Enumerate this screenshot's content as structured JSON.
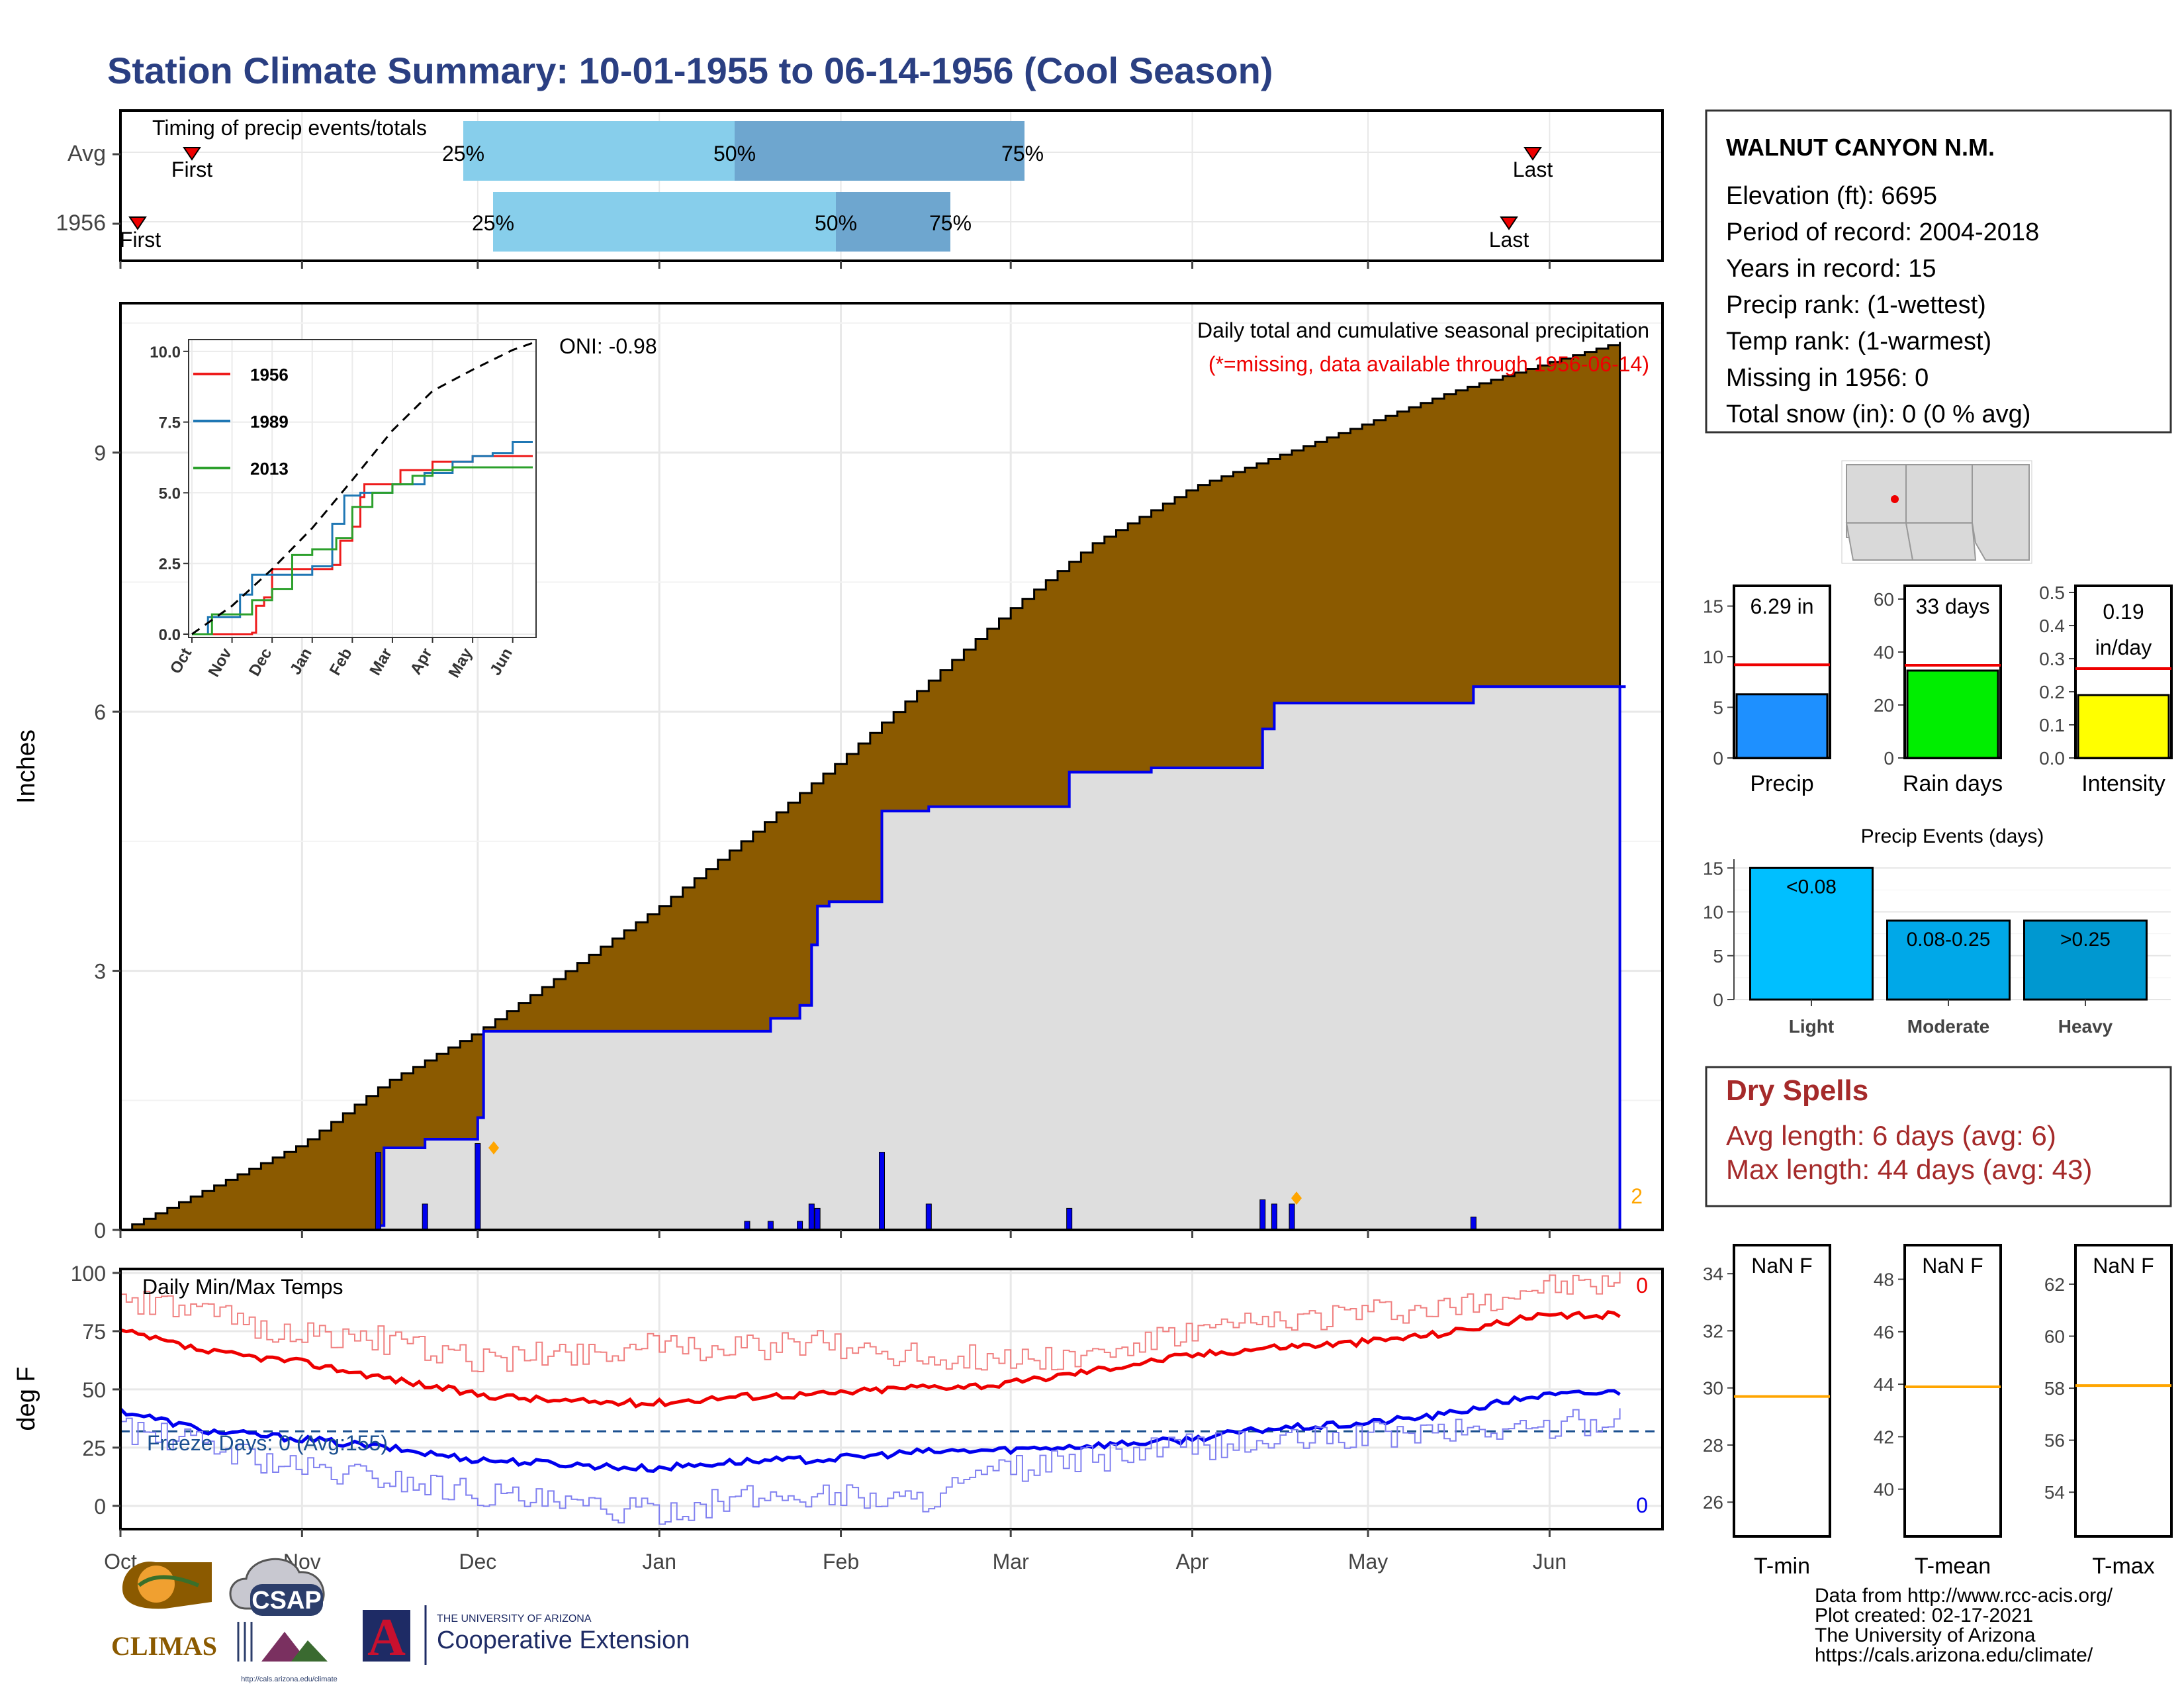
{
  "title": "Station Climate Summary: 10-01-1955 to 06-14-1956 (Cool Season)",
  "colors": {
    "title": "#2a3f82",
    "precip_area": "#8B5A00",
    "normal_area": "#dedede",
    "blue": "#0000ee",
    "red": "#ee0000",
    "dry": "#a52a2a",
    "orange": "#ffa500"
  },
  "station": {
    "name": "WALNUT CANYON N.M.",
    "lines": [
      "Elevation (ft): 6695",
      "Period of record: 2004-2018",
      "Years in record: 15",
      "Precip rank:  (1-wettest)",
      "Temp rank:  (1-warmest)",
      "Missing in 1956: 0",
      "Total snow (in): 0 (0 % avg)"
    ]
  },
  "timing": {
    "title": "Timing of precip events/totals",
    "rows": [
      {
        "label": "Avg",
        "first": "Oct 12",
        "last": "Jun 1",
        "q25": "Nov 18",
        "q50": "Jan 8",
        "q75": "Feb 25"
      },
      {
        "label": "1956",
        "first": "Oct 4",
        "last": "May 28",
        "q25": "Nov 23",
        "q50": "Jan 28",
        "q75": "Feb 17"
      }
    ],
    "first_label": "First",
    "last_label": "Last",
    "p25": "25%",
    "p50": "50%",
    "p75": "75%"
  },
  "chart_data": [
    {
      "type": "area",
      "name": "precipitation",
      "ylabel": "Inches",
      "ylim": [
        0,
        10.5
      ],
      "yticks": [
        0,
        3,
        6,
        9
      ],
      "xticks": [
        "Oct",
        "Nov",
        "Dec",
        "Jan",
        "Feb",
        "Mar",
        "Apr",
        "May",
        "Jun"
      ],
      "legend_text": "Daily total and cumulative seasonal precipitation",
      "missing_note": "(*=missing, data available through 1956-06-14)",
      "oni": "ONI: -0.98",
      "corner_count": "2",
      "avg_cumulative": {
        "x": [
          "Oct 1",
          "Oct 15",
          "Nov 1",
          "Nov 15",
          "Dec 1",
          "Dec 15",
          "Jan 1",
          "Jan 15",
          "Feb 1",
          "Feb 15",
          "Mar 1",
          "Mar 15",
          "Apr 1",
          "Apr 15",
          "May 1",
          "May 15",
          "Jun 1",
          "Jun 14"
        ],
        "y": [
          0,
          0.45,
          1.0,
          1.7,
          2.3,
          2.95,
          3.75,
          4.5,
          5.45,
          6.3,
          7.2,
          7.95,
          8.6,
          8.95,
          9.35,
          9.7,
          10.05,
          10.3
        ]
      },
      "season_cumulative": {
        "x": [
          "Oct 1",
          "Nov 14",
          "Nov 15",
          "Nov 22",
          "Dec 1",
          "Dec 2",
          "Jan 16",
          "Jan 20",
          "Jan 25",
          "Jan 27",
          "Jan 28",
          "Jan 30",
          "Feb 8",
          "Feb 16",
          "Mar 11",
          "Mar 25",
          "Apr 13",
          "Apr 15",
          "May 19",
          "Jun 14"
        ],
        "y": [
          0,
          0.05,
          0.95,
          1.05,
          1.3,
          2.3,
          2.3,
          2.45,
          2.6,
          3.3,
          3.75,
          3.8,
          4.85,
          4.9,
          5.3,
          5.35,
          5.8,
          6.1,
          6.29,
          6.29
        ]
      },
      "daily": {
        "x": [
          "Nov 14",
          "Nov 22",
          "Dec 1",
          "Jan 16",
          "Jan 20",
          "Jan 25",
          "Jan 27",
          "Jan 28",
          "Feb 8",
          "Feb 16",
          "Mar 11",
          "Apr 13",
          "Apr 15",
          "Apr 18",
          "May 19"
        ],
        "y": [
          0.9,
          0.3,
          1.0,
          0.1,
          0.1,
          0.1,
          0.3,
          0.25,
          0.9,
          0.3,
          0.25,
          0.35,
          0.3,
          0.3,
          0.15
        ]
      }
    },
    {
      "type": "line",
      "name": "inset cumulative",
      "ylim": [
        0,
        10
      ],
      "yticks": [
        "0.0",
        "2.5",
        "5.0",
        "7.5",
        "10.0"
      ],
      "xticks": [
        "Oct",
        "Nov",
        "Dec",
        "Jan",
        "Feb",
        "Mar",
        "Apr",
        "May",
        "Jun"
      ],
      "series": [
        {
          "name": "1956",
          "color": "#ee1c1c",
          "x": [
            0,
            1.5,
            1.6,
            1.8,
            2.0,
            2.1,
            3.5,
            3.7,
            4.0,
            4.2,
            4.3,
            4.5,
            5.2,
            6.0,
            7.0,
            8.0,
            8.5
          ],
          "y": [
            0,
            0.05,
            1.0,
            1.3,
            2.3,
            2.3,
            2.45,
            3.3,
            3.8,
            4.85,
            5.3,
            5.3,
            5.8,
            6.1,
            6.3,
            6.3,
            6.3
          ]
        },
        {
          "name": "1989",
          "color": "#1f77b4",
          "x": [
            0,
            0.4,
            1.2,
            1.5,
            2.0,
            2.5,
            3.0,
            3.5,
            3.8,
            4.2,
            5.0,
            5.8,
            6.5,
            7.0,
            7.5,
            8.0,
            8.5
          ],
          "y": [
            0,
            0.6,
            1.4,
            2.1,
            2.1,
            2.1,
            2.4,
            3.9,
            4.9,
            5.0,
            5.3,
            5.7,
            6.1,
            6.3,
            6.4,
            6.8,
            6.8
          ]
        },
        {
          "name": "2013",
          "color": "#2ca02c",
          "x": [
            0,
            0.5,
            1.5,
            2.0,
            2.5,
            3.0,
            3.6,
            4.0,
            4.5,
            5.0,
            5.5,
            6.0,
            6.5,
            7.0,
            7.5,
            8.0,
            8.5
          ],
          "y": [
            0,
            0.7,
            1.2,
            1.6,
            2.8,
            3.0,
            3.4,
            4.5,
            5.0,
            5.3,
            5.6,
            5.8,
            5.9,
            5.9,
            5.9,
            5.9,
            5.9
          ]
        },
        {
          "name": "avg",
          "color": "#000000",
          "dashed": true,
          "x": [
            0,
            1,
            2,
            3,
            4,
            5,
            6,
            7,
            8,
            8.5
          ],
          "y": [
            0,
            1.0,
            2.3,
            3.75,
            5.45,
            7.2,
            8.6,
            9.35,
            10.05,
            10.3
          ]
        }
      ]
    },
    {
      "type": "line",
      "name": "temperature",
      "title": "Daily Min/Max Temps",
      "ylabel": "deg F",
      "ylim": [
        -10,
        100
      ],
      "yticks": [
        0,
        25,
        50,
        75,
        100
      ],
      "xticks": [
        "Oct",
        "Nov",
        "Dec",
        "Jan",
        "Feb",
        "Mar",
        "Apr",
        "May",
        "Jun"
      ],
      "freeze_line": 32,
      "freeze_text": "Freeze Days: 0 (Avg:155)",
      "max_count": "0",
      "min_count": "0",
      "series": [
        {
          "name": "avg max",
          "color": "#ee0000",
          "x": [
            0,
            0.5,
            1,
            1.5,
            2,
            2.5,
            3,
            3.5,
            4,
            4.5,
            5,
            5.5,
            6,
            6.5,
            7,
            7.5,
            8,
            8.5
          ],
          "y": [
            75,
            66,
            62,
            55,
            48,
            45,
            44,
            47,
            48,
            51,
            52,
            58,
            64,
            68,
            70,
            74,
            81,
            82
          ]
        },
        {
          "name": "avg min",
          "color": "#0000ee",
          "x": [
            0,
            0.5,
            1,
            1.5,
            2,
            2.5,
            3,
            3.5,
            4,
            4.5,
            5,
            5.5,
            6,
            6.5,
            7,
            7.5,
            8,
            8.5
          ],
          "y": [
            41,
            32,
            29,
            25,
            20,
            18,
            16,
            19,
            20,
            23,
            24,
            26,
            28,
            33,
            35,
            39,
            47,
            49
          ]
        },
        {
          "name": "max 1956",
          "color": "#f08080",
          "x": [
            0,
            0.5,
            1,
            1.5,
            2,
            2.5,
            3,
            3.5,
            4,
            4.5,
            5,
            5.5,
            6,
            6.5,
            7,
            7.5,
            8,
            8.5
          ],
          "y": [
            88,
            82,
            74,
            71,
            62,
            66,
            68,
            68,
            70,
            64,
            63,
            64,
            73,
            78,
            83,
            84,
            93,
            95
          ]
        },
        {
          "name": "min 1956",
          "color": "#8080f0",
          "x": [
            0,
            0.5,
            1,
            1.5,
            2,
            2.5,
            3,
            3.5,
            4,
            4.5,
            5,
            5.5,
            6,
            6.5,
            7,
            7.5,
            8,
            8.5
          ],
          "y": [
            33,
            26,
            16,
            12,
            6,
            0,
            -3,
            3,
            5,
            2,
            15,
            20,
            25,
            27,
            30,
            32,
            33,
            38
          ]
        }
      ]
    },
    {
      "type": "bar",
      "name": "Precip",
      "label": "6.29 in",
      "ylim": [
        0,
        17
      ],
      "yticks": [
        0,
        5,
        10,
        15
      ],
      "values": [
        6.29
      ],
      "avg": 9.2,
      "color": "#1e90ff"
    },
    {
      "type": "bar",
      "name": "Rain days",
      "label": "33 days",
      "ylim": [
        0,
        65
      ],
      "yticks": [
        0,
        20,
        40,
        60
      ],
      "values": [
        33
      ],
      "avg": 35,
      "color": "#00ee00"
    },
    {
      "type": "bar",
      "name": "Intensity",
      "label_lines": [
        "0.19",
        "in/day"
      ],
      "ylim": [
        0,
        0.52
      ],
      "yticks": [
        "0.0",
        "0.1",
        "0.2",
        "0.3",
        "0.4",
        "0.5"
      ],
      "values": [
        0.19
      ],
      "avg": 0.27,
      "color": "#ffff00"
    },
    {
      "type": "bar",
      "name": "Precip Events (days)",
      "title": "Precip Events (days)",
      "ylim": [
        0,
        16
      ],
      "yticks": [
        0,
        5,
        10,
        15
      ],
      "categories": [
        "Light",
        "Moderate",
        "Heavy"
      ],
      "labels": [
        "<0.08",
        "0.08-0.25",
        ">0.25"
      ],
      "values": [
        15,
        9,
        9
      ],
      "colors": [
        "#00bfff",
        "#00a8e8",
        "#0098d0"
      ]
    },
    {
      "type": "bar",
      "name": "T-min",
      "label": "NaN F",
      "ylim": [
        24.8,
        35
      ],
      "yticks": [
        26,
        28,
        30,
        32,
        34
      ],
      "avg": 29.7
    },
    {
      "type": "bar",
      "name": "T-mean",
      "label": "NaN F",
      "ylim": [
        38.2,
        49.3
      ],
      "yticks": [
        40,
        42,
        44,
        46,
        48
      ],
      "avg": 43.9
    },
    {
      "type": "bar",
      "name": "T-max",
      "label": "NaN F",
      "ylim": [
        52.3,
        63.5
      ],
      "yticks": [
        54,
        56,
        58,
        60,
        62
      ],
      "avg": 58.1
    }
  ],
  "dry_spells": {
    "title": "Dry Spells",
    "avg": "Avg length: 6 days (avg: 6)",
    "max": "Max length: 44 days (avg: 43)"
  },
  "credits": [
    "Data from http://www.rcc-acis.org/",
    "Plot created: 02-17-2021",
    "The University of Arizona",
    "https://cals.arizona.edu/climate/"
  ],
  "logos": {
    "climas": "CLIMAS",
    "csap": "CSAP",
    "csap_url": "http://cals.arizona.edu/climate",
    "ua_small": "THE UNIVERSITY OF ARIZONA",
    "ua_big": "Cooperative Extension",
    "ua_letter": "A"
  }
}
